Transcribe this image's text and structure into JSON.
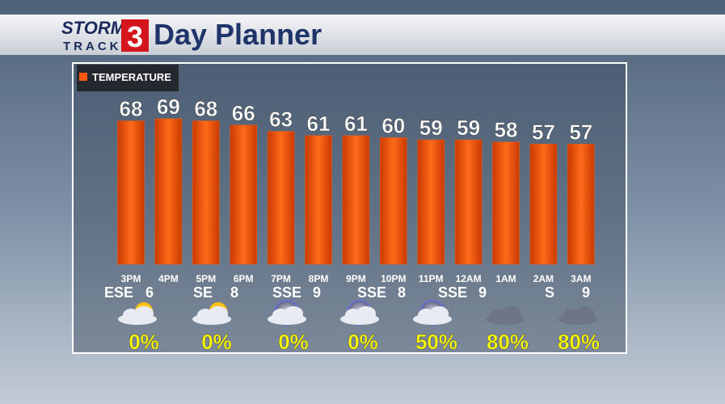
{
  "brand": {
    "line1": "STORM",
    "line2": "TRACK",
    "number": "3"
  },
  "chart_data": {
    "type": "bar",
    "title": "Day Planner",
    "categories": [
      "3PM",
      "4PM",
      "5PM",
      "6PM",
      "7PM",
      "8PM",
      "9PM",
      "10PM",
      "11PM",
      "12AM",
      "1AM",
      "2AM",
      "3AM"
    ],
    "series": [
      {
        "name": "TEMPERATURE",
        "color": "#ff5a10",
        "values": [
          68,
          69,
          68,
          66,
          63,
          61,
          61,
          60,
          59,
          59,
          58,
          57,
          57
        ]
      }
    ],
    "wind": [
      {
        "direction": "ESE",
        "speed": 6
      },
      {
        "direction": "SE",
        "speed": 8
      },
      {
        "direction": "SSE",
        "speed": 9
      },
      {
        "direction": "SSE",
        "speed": 8
      },
      {
        "direction": "SSE",
        "speed": 9
      },
      {
        "direction": "S",
        "speed": 9
      }
    ],
    "precip": {
      "values": [
        0,
        0,
        0,
        0,
        50,
        80,
        80
      ],
      "value_labels": [
        "0%",
        "0%",
        "0%",
        "0%",
        "50%",
        "80%",
        "80%"
      ]
    }
  }
}
